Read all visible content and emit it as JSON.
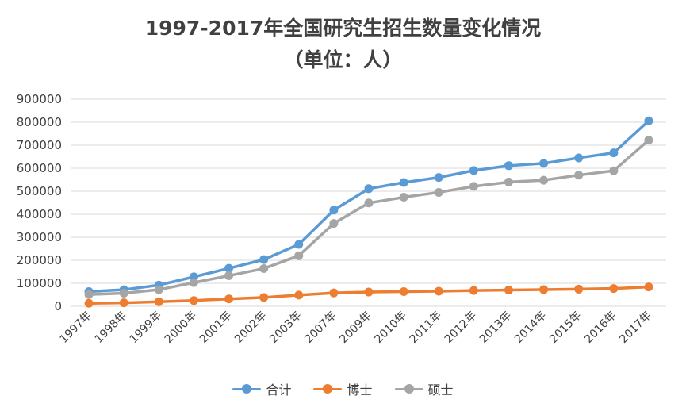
{
  "chart_data": {
    "type": "line",
    "title": "1997-2017年全国研究生招生数量变化情况",
    "subtitle": "（单位：人）",
    "xlabel": "",
    "ylabel": "",
    "categories": [
      "1997年",
      "1998年",
      "1999年",
      "2000年",
      "2001年",
      "2002年",
      "2003年",
      "2007年",
      "2009年",
      "2010年",
      "2011年",
      "2012年",
      "2013年",
      "2014年",
      "2015年",
      "2016年",
      "2017年"
    ],
    "y_ticks": [
      0,
      100000,
      200000,
      300000,
      400000,
      500000,
      600000,
      700000,
      800000,
      900000
    ],
    "ylim": [
      0,
      900000
    ],
    "grid": true,
    "legend_position": "bottom",
    "series": [
      {
        "name": "合计",
        "color": "#5b9bd5",
        "values": [
          64000,
          72000,
          92000,
          128000,
          165000,
          203000,
          269000,
          418000,
          511000,
          538000,
          560000,
          590000,
          611000,
          621000,
          645000,
          667000,
          806000
        ]
      },
      {
        "name": "博士",
        "color": "#ed7d31",
        "values": [
          12900,
          15000,
          19900,
          25100,
          32100,
          38300,
          48700,
          58000,
          61900,
          63800,
          65600,
          68400,
          70500,
          72600,
          74400,
          77300,
          83900
        ]
      },
      {
        "name": "硕士",
        "color": "#a5a5a5",
        "values": [
          51100,
          57000,
          72300,
          103000,
          133000,
          164000,
          220000,
          360000,
          449000,
          474000,
          495000,
          521000,
          540000,
          548000,
          570000,
          589000,
          722000
        ]
      }
    ]
  }
}
